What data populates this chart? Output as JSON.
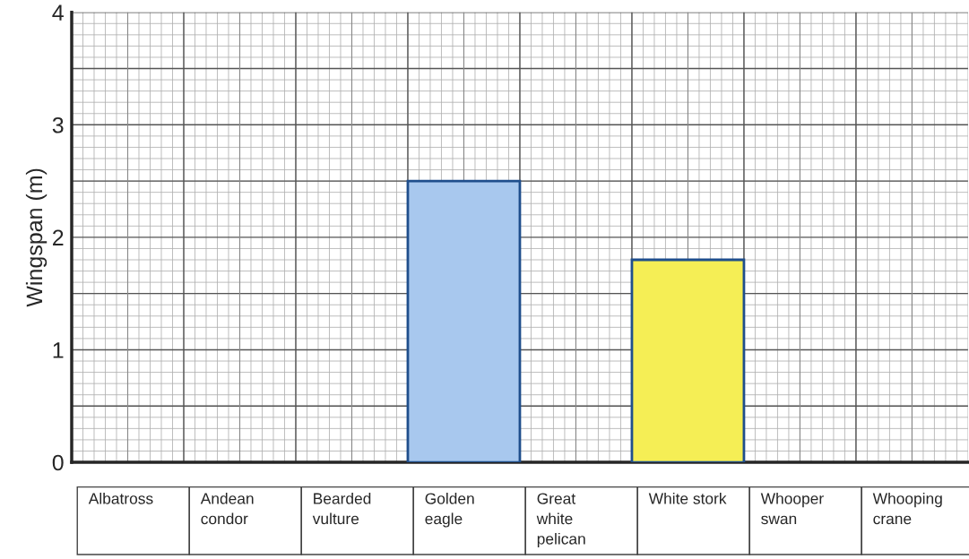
{
  "chart_data": {
    "type": "bar",
    "ylabel": "Wingspan (m)",
    "categories": [
      "Albatross",
      "Andean\ncondor",
      "Bearded\nvulture",
      "Golden\neagle",
      "Great\nwhite\npelican",
      "White stork",
      "Whooper\nswan",
      "Whooping\ncrane"
    ],
    "values": [
      null,
      null,
      null,
      2.5,
      null,
      1.8,
      null,
      null
    ],
    "colors": [
      null,
      null,
      null,
      "#a8c8ee",
      null,
      "#f5ee55",
      null,
      null
    ],
    "ylim": [
      0,
      4
    ],
    "yticks": [
      0,
      1,
      2,
      3,
      4
    ],
    "grid": true
  }
}
